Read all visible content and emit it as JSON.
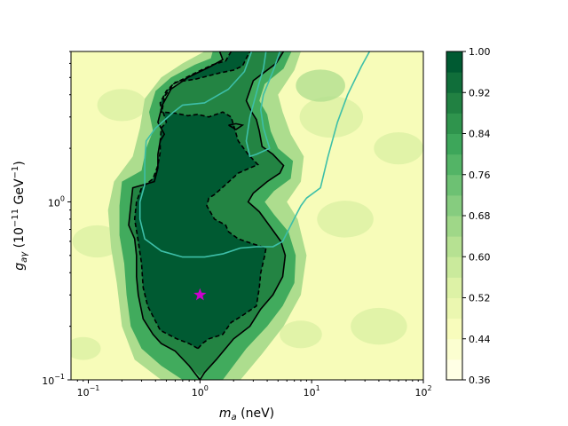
{
  "chart_data": {
    "type": "heatmap",
    "title": "",
    "x_scale": "log",
    "y_scale": "log",
    "xlim": [
      0.07,
      100
    ],
    "ylim": [
      0.1,
      7.0
    ],
    "x_ticks": [
      {
        "value": 0.1,
        "mantissa": "10",
        "exp": "−1"
      },
      {
        "value": 1,
        "mantissa": "10",
        "exp": "0"
      },
      {
        "value": 10,
        "mantissa": "10",
        "exp": "1"
      },
      {
        "value": 100,
        "mantissa": "10",
        "exp": "2"
      }
    ],
    "y_ticks": [
      {
        "value": 0.1,
        "mantissa": "10",
        "exp": "−1"
      },
      {
        "value": 1,
        "mantissa": "10",
        "exp": "0"
      }
    ],
    "x_minor_ticks": [
      0.08,
      0.09,
      0.2,
      0.3,
      0.4,
      0.5,
      0.6,
      0.7,
      0.8,
      0.9,
      2,
      3,
      4,
      5,
      6,
      7,
      8,
      9,
      20,
      30,
      40,
      50,
      60,
      70,
      80,
      90
    ],
    "y_minor_ticks": [
      0.2,
      0.3,
      0.4,
      0.5,
      0.6,
      0.7,
      0.8,
      0.9,
      2,
      3,
      4,
      5,
      6,
      7
    ],
    "colorbar": {
      "min": 0.36,
      "max": 1.0,
      "levels": 16,
      "ticks": [
        "0.36",
        "0.44",
        "0.52",
        "0.60",
        "0.68",
        "0.76",
        "0.84",
        "0.92",
        "1.00"
      ],
      "colors": [
        "#ffffe5",
        "#f7fcb9",
        "#d9f0a3",
        "#addd8e",
        "#78c679",
        "#41ab5d",
        "#238443",
        "#005a32"
      ]
    },
    "star_marker": {
      "x": 1.0,
      "y": 0.3,
      "color": "#cc00cc"
    },
    "region_high": [
      [
        1.0,
        0.105
      ],
      [
        1.15,
        0.115
      ],
      [
        1.4,
        0.13
      ],
      [
        2.0,
        0.17
      ],
      [
        2.8,
        0.2
      ],
      [
        3.5,
        0.25
      ],
      [
        4.5,
        0.3
      ],
      [
        5.5,
        0.38
      ],
      [
        5.8,
        0.5
      ],
      [
        5.3,
        0.6
      ],
      [
        4.3,
        0.72
      ],
      [
        3.4,
        0.88
      ],
      [
        2.7,
        1.0
      ],
      [
        3.0,
        1.12
      ],
      [
        4.0,
        1.3
      ],
      [
        5.2,
        1.45
      ],
      [
        5.6,
        1.6
      ],
      [
        4.5,
        1.85
      ],
      [
        3.6,
        2.05
      ],
      [
        3.4,
        2.5
      ],
      [
        3.2,
        2.9
      ],
      [
        2.9,
        3.2
      ],
      [
        2.6,
        3.7
      ],
      [
        3.0,
        4.8
      ],
      [
        4.8,
        6.0
      ],
      [
        5.6,
        7.0
      ],
      [
        1.5,
        7.0
      ],
      [
        1.6,
        6.3
      ],
      [
        1.2,
        5.7
      ],
      [
        0.78,
        5.0
      ],
      [
        0.55,
        4.3
      ],
      [
        0.46,
        3.5
      ],
      [
        0.42,
        2.8
      ],
      [
        0.48,
        2.4
      ],
      [
        0.44,
        2.2
      ],
      [
        0.42,
        1.85
      ],
      [
        0.42,
        1.55
      ],
      [
        0.39,
        1.3
      ],
      [
        0.25,
        1.2
      ],
      [
        0.24,
        0.95
      ],
      [
        0.23,
        0.74
      ],
      [
        0.26,
        0.62
      ],
      [
        0.27,
        0.5
      ],
      [
        0.27,
        0.38
      ],
      [
        0.28,
        0.3
      ],
      [
        0.31,
        0.22
      ],
      [
        0.38,
        0.18
      ],
      [
        0.45,
        0.16
      ],
      [
        0.6,
        0.145
      ],
      [
        0.8,
        0.12
      ],
      [
        1.0,
        0.105
      ]
    ],
    "region_core": [
      [
        0.96,
        0.15
      ],
      [
        1.05,
        0.16
      ],
      [
        1.2,
        0.17
      ],
      [
        1.6,
        0.18
      ],
      [
        1.9,
        0.21
      ],
      [
        2.4,
        0.23
      ],
      [
        3.2,
        0.26
      ],
      [
        3.4,
        0.33
      ],
      [
        3.5,
        0.4
      ],
      [
        3.8,
        0.5
      ],
      [
        3.9,
        0.55
      ],
      [
        3.0,
        0.58
      ],
      [
        2.2,
        0.62
      ],
      [
        1.8,
        0.68
      ],
      [
        1.7,
        0.74
      ],
      [
        1.35,
        0.8
      ],
      [
        1.15,
        0.95
      ],
      [
        1.2,
        1.05
      ],
      [
        1.35,
        1.1
      ],
      [
        1.7,
        1.25
      ],
      [
        2.2,
        1.45
      ],
      [
        2.8,
        1.55
      ],
      [
        3.3,
        1.62
      ],
      [
        2.7,
        1.85
      ],
      [
        2.2,
        2.2
      ],
      [
        2.0,
        2.7
      ],
      [
        1.9,
        3.0
      ],
      [
        1.6,
        3.2
      ],
      [
        1.2,
        3.0
      ],
      [
        0.95,
        3.1
      ],
      [
        0.78,
        3.05
      ],
      [
        0.6,
        3.15
      ],
      [
        0.45,
        3.2
      ],
      [
        0.44,
        3.6
      ],
      [
        0.5,
        4.2
      ],
      [
        0.6,
        4.7
      ],
      [
        0.92,
        4.9
      ],
      [
        1.5,
        5.3
      ],
      [
        2.0,
        5.5
      ],
      [
        2.4,
        5.8
      ],
      [
        2.6,
        6.4
      ],
      [
        2.8,
        7.0
      ],
      [
        1.9,
        7.0
      ],
      [
        1.7,
        6.2
      ],
      [
        1.3,
        5.9
      ],
      [
        0.85,
        5.2
      ],
      [
        0.58,
        4.6
      ],
      [
        0.48,
        3.9
      ],
      [
        0.46,
        3.3
      ],
      [
        0.5,
        2.8
      ],
      [
        0.45,
        2.6
      ],
      [
        0.44,
        2.2
      ],
      [
        0.44,
        1.9
      ],
      [
        0.42,
        1.6
      ],
      [
        0.38,
        1.35
      ],
      [
        0.3,
        1.2
      ],
      [
        0.27,
        1.0
      ],
      [
        0.26,
        0.8
      ],
      [
        0.28,
        0.6
      ],
      [
        0.3,
        0.45
      ],
      [
        0.31,
        0.33
      ],
      [
        0.34,
        0.26
      ],
      [
        0.44,
        0.19
      ],
      [
        0.62,
        0.17
      ],
      [
        0.8,
        0.16
      ],
      [
        0.96,
        0.15
      ]
    ],
    "region_mid": [
      [
        1.0,
        0.08
      ],
      [
        1.6,
        0.1
      ],
      [
        2.6,
        0.15
      ],
      [
        4.0,
        0.2
      ],
      [
        5.5,
        0.26
      ],
      [
        7.0,
        0.35
      ],
      [
        7.2,
        0.5
      ],
      [
        6.2,
        0.68
      ],
      [
        4.6,
        0.85
      ],
      [
        3.8,
        1.0
      ],
      [
        4.6,
        1.15
      ],
      [
        6.5,
        1.35
      ],
      [
        6.8,
        1.7
      ],
      [
        5.0,
        2.0
      ],
      [
        4.3,
        2.5
      ],
      [
        4.0,
        3.1
      ],
      [
        3.4,
        3.7
      ],
      [
        3.8,
        4.6
      ],
      [
        5.6,
        5.6
      ],
      [
        6.6,
        7.0
      ],
      [
        1.3,
        7.0
      ],
      [
        1.25,
        6.4
      ],
      [
        0.9,
        5.9
      ],
      [
        0.55,
        5.0
      ],
      [
        0.4,
        4.2
      ],
      [
        0.35,
        3.2
      ],
      [
        0.38,
        2.5
      ],
      [
        0.33,
        2.0
      ],
      [
        0.3,
        1.5
      ],
      [
        0.2,
        1.3
      ],
      [
        0.19,
        0.95
      ],
      [
        0.19,
        0.65
      ],
      [
        0.21,
        0.45
      ],
      [
        0.22,
        0.3
      ],
      [
        0.24,
        0.2
      ],
      [
        0.3,
        0.15
      ],
      [
        0.45,
        0.12
      ],
      [
        0.7,
        0.1
      ],
      [
        1.0,
        0.08
      ]
    ],
    "region_faint": [
      [
        1.0,
        0.07
      ],
      [
        2.0,
        0.09
      ],
      [
        3.6,
        0.14
      ],
      [
        5.6,
        0.2
      ],
      [
        8.0,
        0.3
      ],
      [
        9.0,
        0.5
      ],
      [
        7.5,
        0.8
      ],
      [
        6.0,
        1.0
      ],
      [
        8.0,
        1.3
      ],
      [
        8.5,
        1.8
      ],
      [
        6.5,
        2.4
      ],
      [
        5.5,
        3.2
      ],
      [
        5.0,
        4.0
      ],
      [
        7.0,
        5.5
      ],
      [
        8.0,
        7.0
      ],
      [
        1.1,
        7.0
      ],
      [
        0.7,
        6.0
      ],
      [
        0.45,
        5.0
      ],
      [
        0.32,
        3.8
      ],
      [
        0.29,
        2.6
      ],
      [
        0.25,
        1.8
      ],
      [
        0.17,
        1.3
      ],
      [
        0.15,
        0.9
      ],
      [
        0.16,
        0.55
      ],
      [
        0.18,
        0.35
      ],
      [
        0.2,
        0.2
      ],
      [
        0.26,
        0.13
      ],
      [
        0.45,
        0.1
      ],
      [
        0.7,
        0.085
      ],
      [
        1.0,
        0.07
      ]
    ],
    "patches": [
      {
        "x": 0.2,
        "y": 3.5,
        "r": 0.07,
        "level": 2
      },
      {
        "x": 0.12,
        "y": 0.6,
        "r": 0.07,
        "level": 2
      },
      {
        "x": 15,
        "y": 3.0,
        "r": 0.09,
        "level": 2
      },
      {
        "x": 20,
        "y": 0.8,
        "r": 0.08,
        "level": 2
      },
      {
        "x": 40,
        "y": 0.2,
        "r": 0.08,
        "level": 2
      },
      {
        "x": 60,
        "y": 2.0,
        "r": 0.07,
        "level": 2
      },
      {
        "x": 8,
        "y": 0.18,
        "r": 0.06,
        "level": 2
      },
      {
        "x": 0.09,
        "y": 0.15,
        "r": 0.05,
        "level": 2
      },
      {
        "x": 12,
        "y": 4.5,
        "r": 0.07,
        "level": 3
      }
    ],
    "contour_solid": [
      [
        1.0,
        0.1
      ],
      [
        1.1,
        0.11
      ],
      [
        1.4,
        0.13
      ],
      [
        2.0,
        0.17
      ],
      [
        2.8,
        0.2
      ],
      [
        3.5,
        0.25
      ],
      [
        4.5,
        0.3
      ],
      [
        5.5,
        0.38
      ],
      [
        5.8,
        0.5
      ],
      [
        5.3,
        0.6
      ],
      [
        4.3,
        0.72
      ],
      [
        3.4,
        0.88
      ],
      [
        2.7,
        1.0
      ],
      [
        3.0,
        1.12
      ],
      [
        4.0,
        1.3
      ],
      [
        5.2,
        1.45
      ],
      [
        5.6,
        1.6
      ],
      [
        4.5,
        1.85
      ],
      [
        3.6,
        2.05
      ],
      [
        3.4,
        2.5
      ],
      [
        3.2,
        2.9
      ],
      [
        2.9,
        3.2
      ],
      [
        2.6,
        3.7
      ],
      [
        3.0,
        4.8
      ],
      [
        4.8,
        6.0
      ],
      [
        5.6,
        7.0
      ]
    ],
    "contour_solid_2": [
      [
        1.5,
        7.0
      ],
      [
        1.6,
        6.3
      ],
      [
        1.2,
        5.7
      ],
      [
        0.78,
        5.0
      ],
      [
        0.55,
        4.3
      ],
      [
        0.46,
        3.5
      ],
      [
        0.42,
        2.8
      ],
      [
        0.48,
        2.4
      ],
      [
        0.44,
        2.2
      ],
      [
        0.42,
        1.85
      ],
      [
        0.42,
        1.55
      ],
      [
        0.39,
        1.3
      ],
      [
        0.25,
        1.2
      ],
      [
        0.24,
        0.95
      ],
      [
        0.23,
        0.74
      ],
      [
        0.26,
        0.62
      ],
      [
        0.27,
        0.5
      ],
      [
        0.27,
        0.38
      ],
      [
        0.28,
        0.3
      ],
      [
        0.31,
        0.22
      ],
      [
        0.38,
        0.18
      ],
      [
        0.45,
        0.16
      ],
      [
        0.6,
        0.145
      ],
      [
        0.8,
        0.12
      ],
      [
        1.0,
        0.1
      ]
    ],
    "contour_solid_notch": [
      [
        1.8,
        2.7
      ],
      [
        2.1,
        2.55
      ],
      [
        2.4,
        2.7
      ],
      [
        2.1,
        2.75
      ],
      [
        1.8,
        2.7
      ]
    ],
    "contour_dashed": [
      [
        0.96,
        0.15
      ],
      [
        1.05,
        0.16
      ],
      [
        1.2,
        0.17
      ],
      [
        1.6,
        0.18
      ],
      [
        1.9,
        0.21
      ],
      [
        2.4,
        0.23
      ],
      [
        3.2,
        0.26
      ],
      [
        3.4,
        0.33
      ],
      [
        3.5,
        0.4
      ],
      [
        3.8,
        0.5
      ],
      [
        3.9,
        0.55
      ],
      [
        3.0,
        0.58
      ],
      [
        2.2,
        0.62
      ],
      [
        1.8,
        0.68
      ],
      [
        1.7,
        0.74
      ],
      [
        1.35,
        0.8
      ],
      [
        1.15,
        0.95
      ],
      [
        1.2,
        1.05
      ],
      [
        1.35,
        1.1
      ],
      [
        1.7,
        1.25
      ],
      [
        2.2,
        1.45
      ],
      [
        2.8,
        1.55
      ],
      [
        3.3,
        1.62
      ],
      [
        2.7,
        1.85
      ],
      [
        2.2,
        2.2
      ],
      [
        2.0,
        2.7
      ],
      [
        1.9,
        3.0
      ],
      [
        1.6,
        3.2
      ],
      [
        1.2,
        3.0
      ],
      [
        0.95,
        3.1
      ],
      [
        0.78,
        3.05
      ],
      [
        0.6,
        3.15
      ],
      [
        0.45,
        3.2
      ],
      [
        0.44,
        3.6
      ],
      [
        0.5,
        4.2
      ],
      [
        0.6,
        4.7
      ],
      [
        0.92,
        4.9
      ],
      [
        1.5,
        5.3
      ],
      [
        2.0,
        5.5
      ],
      [
        2.4,
        5.8
      ],
      [
        2.6,
        6.4
      ],
      [
        2.8,
        7.0
      ]
    ],
    "contour_dashed_2": [
      [
        1.9,
        7.0
      ],
      [
        1.7,
        6.2
      ],
      [
        1.3,
        5.9
      ],
      [
        0.85,
        5.2
      ],
      [
        0.58,
        4.6
      ],
      [
        0.48,
        3.9
      ],
      [
        0.46,
        3.3
      ],
      [
        0.5,
        2.8
      ],
      [
        0.45,
        2.6
      ],
      [
        0.44,
        2.2
      ],
      [
        0.44,
        1.9
      ],
      [
        0.42,
        1.6
      ],
      [
        0.38,
        1.35
      ],
      [
        0.3,
        1.2
      ],
      [
        0.27,
        1.0
      ],
      [
        0.26,
        0.8
      ],
      [
        0.28,
        0.6
      ],
      [
        0.3,
        0.45
      ],
      [
        0.31,
        0.33
      ],
      [
        0.34,
        0.26
      ],
      [
        0.44,
        0.19
      ],
      [
        0.62,
        0.17
      ],
      [
        0.8,
        0.16
      ],
      [
        0.96,
        0.15
      ]
    ],
    "cyan_line_a": [
      [
        2.9,
        7.0
      ],
      [
        2.5,
        5.4
      ],
      [
        1.8,
        4.3
      ],
      [
        1.1,
        3.6
      ],
      [
        0.7,
        3.5
      ],
      [
        0.58,
        3.2
      ],
      [
        0.4,
        2.6
      ],
      [
        0.33,
        2.2
      ],
      [
        0.32,
        1.7
      ],
      [
        0.32,
        1.25
      ],
      [
        0.29,
        1.0
      ],
      [
        0.29,
        0.8
      ],
      [
        0.32,
        0.62
      ],
      [
        0.45,
        0.53
      ],
      [
        0.7,
        0.49
      ],
      [
        1.1,
        0.49
      ],
      [
        1.6,
        0.51
      ],
      [
        2.3,
        0.55
      ],
      [
        3.2,
        0.56
      ],
      [
        4.5,
        0.56
      ],
      [
        5.5,
        0.6
      ],
      [
        6.8,
        0.78
      ],
      [
        8.0,
        0.95
      ],
      [
        9.0,
        1.05
      ],
      [
        12,
        1.2
      ],
      [
        14,
        1.8
      ],
      [
        17,
        2.8
      ],
      [
        21,
        4.0
      ],
      [
        28,
        5.8
      ],
      [
        33,
        7.0
      ]
    ],
    "cyan_line_b": [
      [
        5.2,
        7.0
      ],
      [
        4.5,
        5.4
      ],
      [
        3.7,
        4.0
      ],
      [
        3.5,
        3.3
      ],
      [
        3.7,
        2.6
      ],
      [
        4.2,
        2.0
      ],
      [
        3.2,
        1.85
      ],
      [
        2.8,
        1.8
      ],
      [
        2.6,
        2.2
      ],
      [
        2.8,
        3.0
      ],
      [
        3.1,
        3.8
      ],
      [
        3.4,
        4.7
      ],
      [
        3.7,
        5.6
      ],
      [
        3.9,
        7.0
      ]
    ],
    "star_color": "#cc00cc",
    "dark_color": "#000000",
    "cyan_color": "#3dbfa8",
    "ylabel": "g_{aγ} (10^{−11} GeV^{−1})",
    "xlabel": "m_a (neV)"
  }
}
